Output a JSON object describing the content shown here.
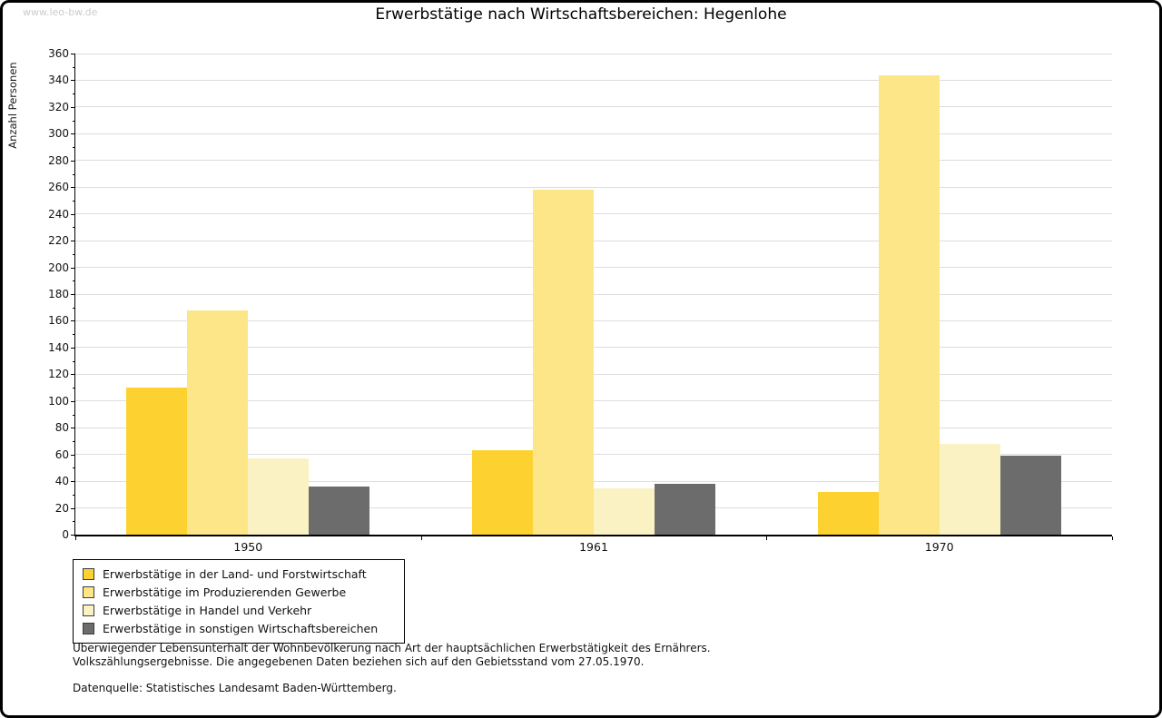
{
  "watermark": "www.leo-bw.de",
  "title": "Erwerbstätige nach Wirtschaftsbereichen: Hegenlohe",
  "chart_data": {
    "type": "bar",
    "title": "Erwerbstätige nach Wirtschaftsbereichen: Hegenlohe",
    "xlabel": "",
    "ylabel": "Anzahl Personen",
    "categories": [
      "1950",
      "1961",
      "1970"
    ],
    "series": [
      {
        "name": "Erwerbstätige in der Land- und Forstwirtschaft",
        "color": "#FDD230",
        "values": [
          110,
          63,
          32
        ]
      },
      {
        "name": "Erwerbstätige im Produzierenden Gewerbe",
        "color": "#FCE687",
        "values": [
          168,
          258,
          344
        ]
      },
      {
        "name": "Erwerbstätige in Handel und Verkehr",
        "color": "#FBF2C4",
        "values": [
          57,
          35,
          68
        ]
      },
      {
        "name": "Erwerbstätige in sonstigen Wirtschaftsbereichen",
        "color": "#6C6C6C",
        "values": [
          36,
          38,
          59
        ]
      }
    ],
    "ylim": [
      0,
      360
    ],
    "ytick_step": 20,
    "ytick_minor_step": 10,
    "grid": true,
    "legend_position": "bottom-left",
    "colors": {
      "grid": "#dddddd",
      "axis": "#000000",
      "watermark": "#cccccc"
    }
  },
  "footnotes": {
    "line1": "Überwiegender Lebensunterhalt der Wohnbevölkerung nach Art der hauptsächlichen Erwerbstätigkeit des Ernährers.",
    "line2": "Volkszählungsergebnisse. Die angegebenen Daten beziehen sich auf den Gebietsstand vom 27.05.1970.",
    "source": "Datenquelle: Statistisches Landesamt Baden-Württemberg."
  }
}
